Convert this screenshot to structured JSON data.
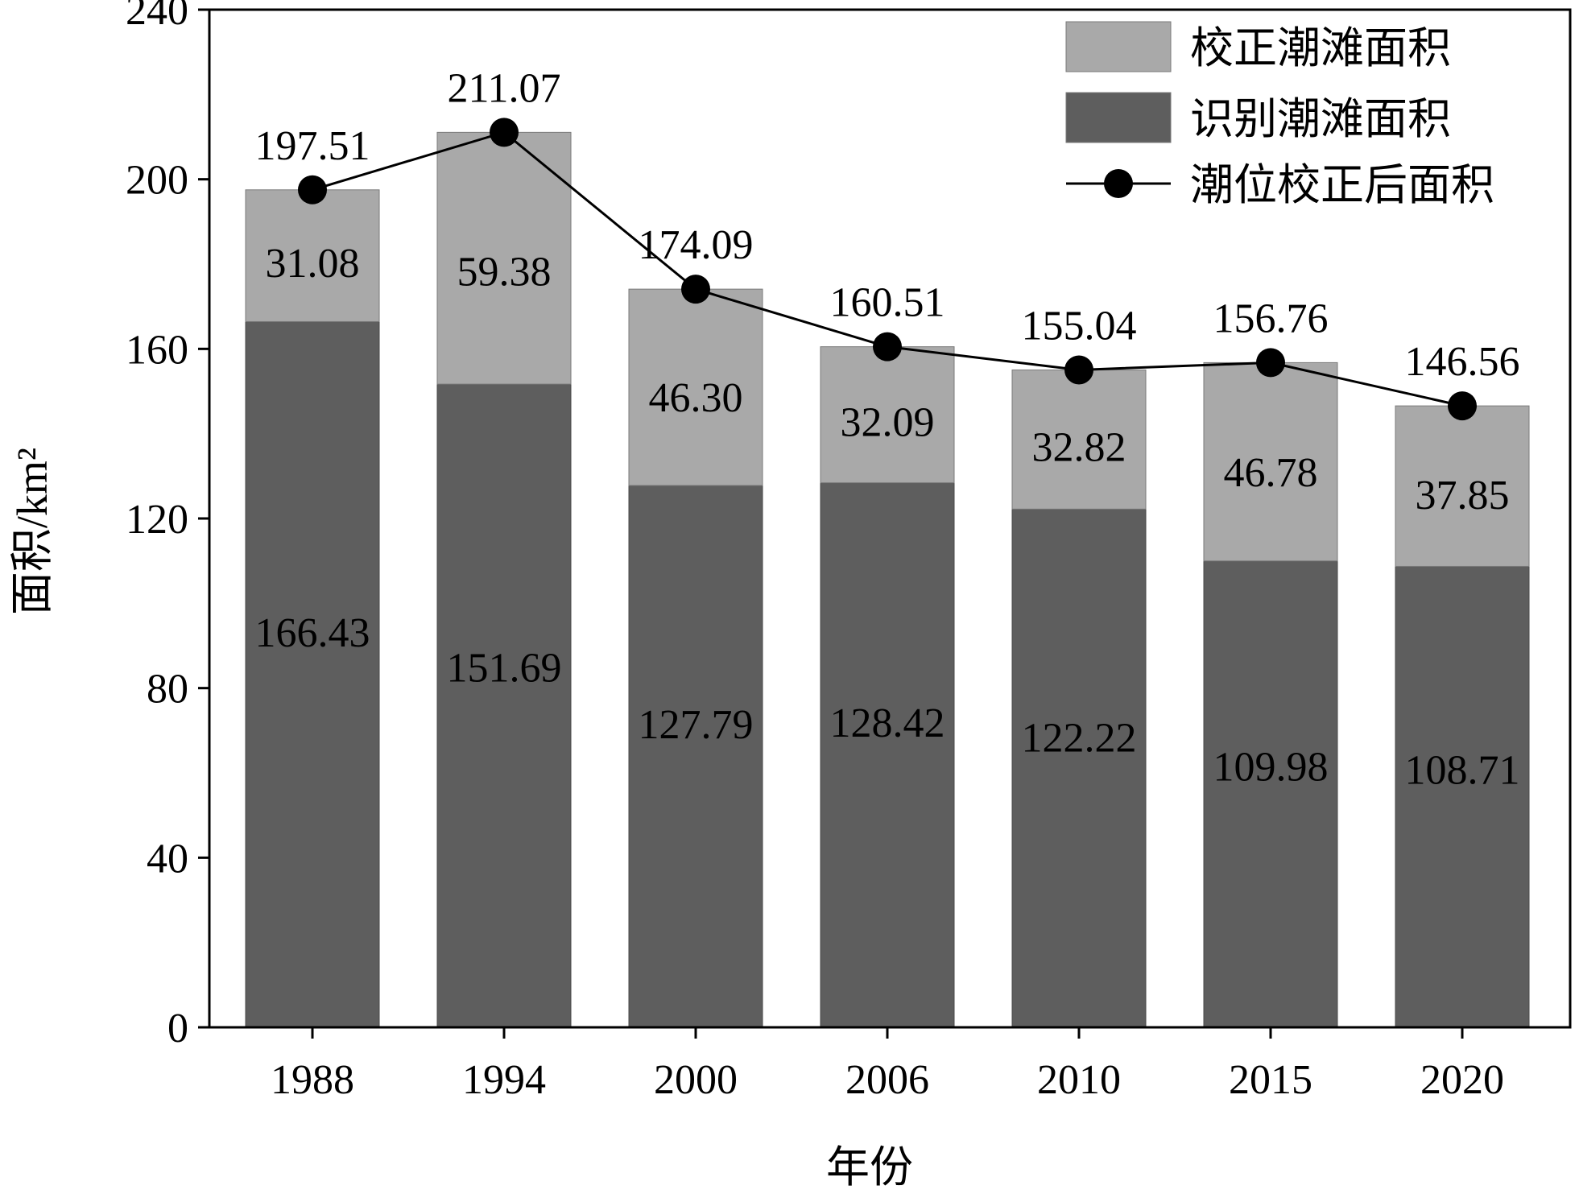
{
  "chart_data": {
    "type": "bar",
    "stacked": true,
    "categories": [
      "1988",
      "1994",
      "2000",
      "2006",
      "2010",
      "2015",
      "2020"
    ],
    "series": [
      {
        "name": "识别潮滩面积",
        "kind": "bar",
        "color": "#5e5e5e",
        "values": [
          166.43,
          151.69,
          127.79,
          128.42,
          122.22,
          109.98,
          108.71
        ],
        "labels": [
          "166.43",
          "151.69",
          "127.79",
          "128.42",
          "122.22",
          "109.98",
          "108.71"
        ]
      },
      {
        "name": "校正潮滩面积",
        "kind": "bar",
        "color": "#a9a9a9",
        "values": [
          31.08,
          59.38,
          46.3,
          32.09,
          32.82,
          46.78,
          37.85
        ],
        "labels": [
          "31.08",
          "59.38",
          "46.30",
          "32.09",
          "32.82",
          "46.78",
          "37.85"
        ]
      },
      {
        "name": "潮位校正后面积",
        "kind": "line-markers",
        "color": "#000000",
        "values": [
          197.51,
          211.07,
          174.09,
          160.51,
          155.04,
          156.76,
          146.56
        ],
        "labels": [
          "197.51",
          "211.07",
          "174.09",
          "160.51",
          "155.04",
          "156.76",
          "146.56"
        ]
      }
    ],
    "xlabel": "年份",
    "ylabel": "面积/km²",
    "ylim": [
      0,
      240
    ],
    "yticks": [
      "0",
      "40",
      "80",
      "120",
      "160",
      "200",
      "240"
    ],
    "grid": false,
    "legend": {
      "placement": "top-right",
      "order": [
        "校正潮滩面积",
        "识别潮滩面积",
        "潮位校正后面积"
      ]
    }
  }
}
